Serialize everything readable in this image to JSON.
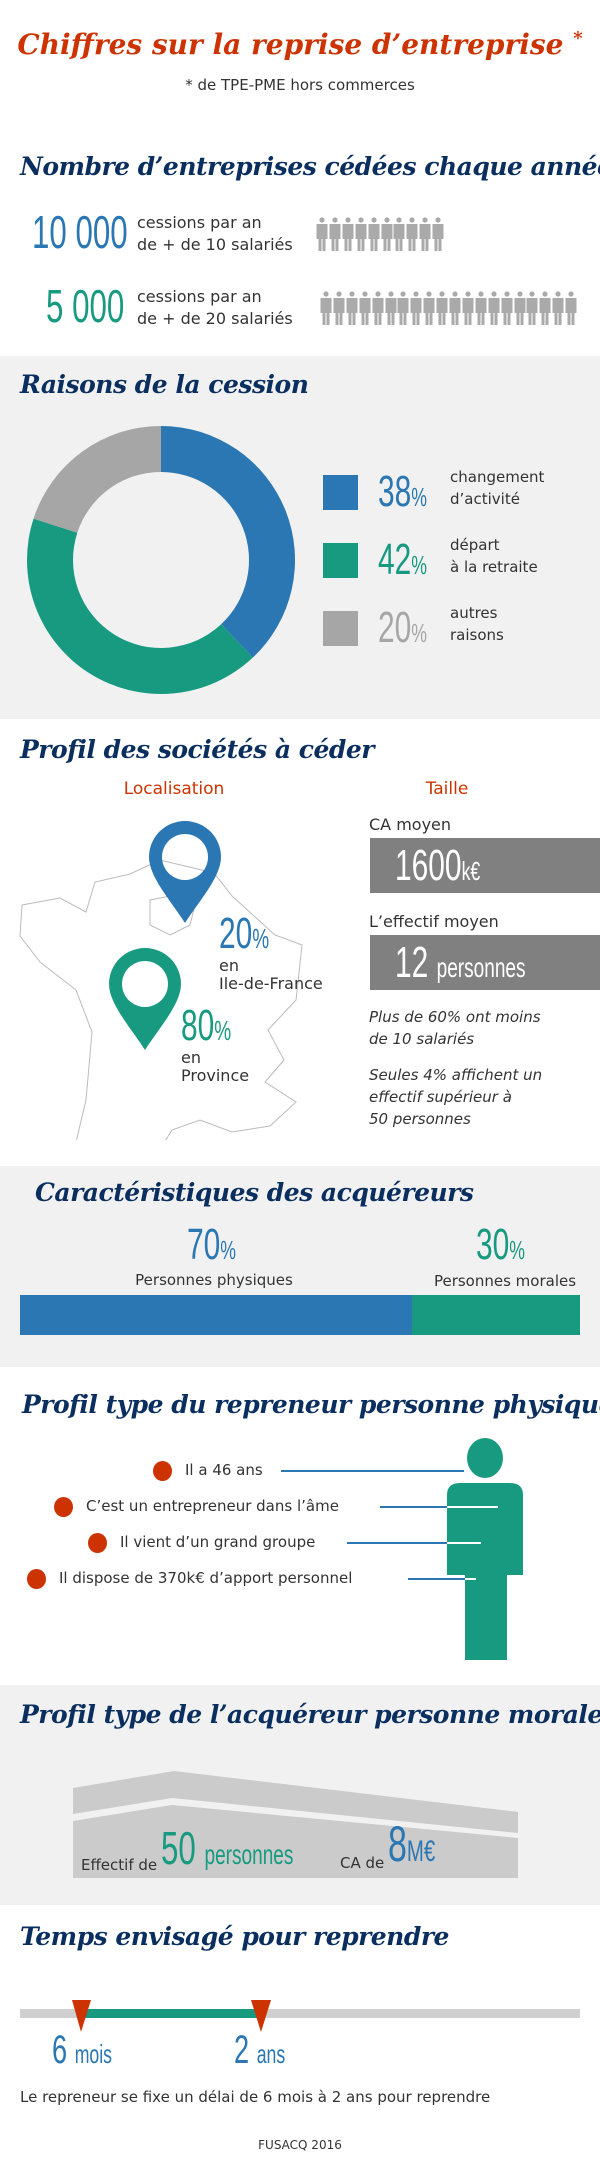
{
  "header": {
    "title": "Chiffres sur la reprise d’entreprise",
    "asterisk": "*",
    "subtitle": "* de TPE-PME hors commerces"
  },
  "colors": {
    "red": "#cc3300",
    "navy": "#0a2f5f",
    "blue": "#2a77b3",
    "green": "#179a80",
    "gray": "#a6a6a6",
    "dark_gray": "#808080"
  },
  "cessions": {
    "title": "Nombre d’entreprises cédées chaque année",
    "rows": [
      {
        "value": "10 000",
        "line1": "cessions par an",
        "line2": "de + de 10 salariés",
        "icons": 10,
        "icon": "person-icon"
      },
      {
        "value": "5 000",
        "line1": "cessions par an",
        "line2": "de + de 20 salariés",
        "icons": 20,
        "icon": "person-icon"
      }
    ]
  },
  "raisons": {
    "title": "Raisons de la cession",
    "chart_data": {
      "type": "pie",
      "donut": true,
      "slices": [
        {
          "value": 38,
          "label": "38",
          "unit": "%",
          "line1": "changement",
          "line2": "d’activité",
          "color": "#2a77b3"
        },
        {
          "value": 42,
          "label": "42",
          "unit": "%",
          "line1": "départ",
          "line2": "à la retraite",
          "color": "#179a80"
        },
        {
          "value": 20,
          "label": "20",
          "unit": "%",
          "line1": "autres",
          "line2": "raisons",
          "color": "#a6a6a6"
        }
      ]
    }
  },
  "profil": {
    "title": "Profil des sociétés à céder",
    "loc_title": "Localisation",
    "taille_title": "Taille",
    "idf": {
      "value": "20",
      "unit": "%",
      "line1": "en",
      "line2": "Ile-de-France",
      "icon": "map-pin-icon"
    },
    "province": {
      "value": "80",
      "unit": "%",
      "line1": "en",
      "line2": "Province",
      "icon": "map-pin-icon"
    },
    "ca_label": "CA moyen",
    "ca_value": "1600",
    "ca_unit": "k€",
    "eff_label": "L’effectif moyen",
    "eff_value": "12",
    "eff_unit": "personnes",
    "note1_l1": "Plus de 60% ont moins",
    "note1_l2": "de 10 salariés",
    "note2_l1": "Seules 4% affichent un",
    "note2_l2": "effectif supérieur à",
    "note2_l3": "50 personnes"
  },
  "acquereurs": {
    "title": "Caractéristiques des acquéreurs",
    "physiques": {
      "value": "70",
      "unit": "%",
      "label": "Personnes physiques",
      "share": 70
    },
    "morales": {
      "value": "30",
      "unit": "%",
      "label": "Personnes morales",
      "share": 30
    }
  },
  "physique": {
    "title": "Profil type du repreneur personne physique",
    "items": [
      "Il a 46 ans",
      "C’est un entrepreneur dans l’âme",
      "Il vient d’un grand groupe",
      "Il dispose de 370k€ d’apport personnel"
    ]
  },
  "morale": {
    "title": "Profil type de l’acquéreur personne morale",
    "eff_prefix": "Effectif de",
    "eff_value": "50",
    "eff_unit": "personnes",
    "ca_prefix": "CA de",
    "ca_value": "8",
    "ca_unit": "M€"
  },
  "temps": {
    "title": "Temps envisagé pour reprendre",
    "start_value": "6",
    "start_unit": "mois",
    "end_value": "2",
    "end_unit": "ans",
    "description": "Le repreneur se fixe un délai de 6 mois à 2 ans pour reprendre"
  },
  "footer": "FUSACQ 2016"
}
